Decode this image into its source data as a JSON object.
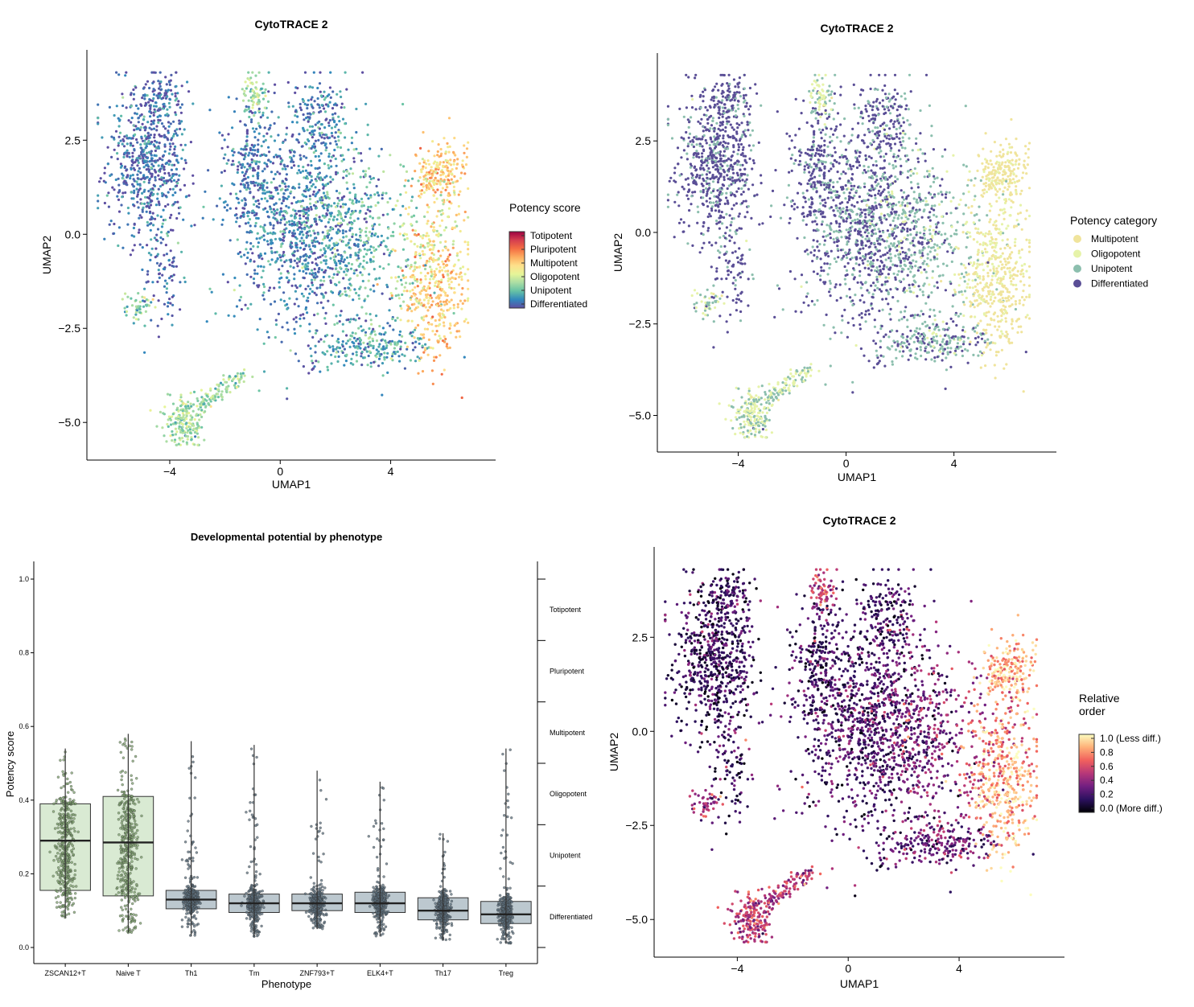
{
  "chart_data": [
    {
      "type": "scatter",
      "id": "umap_score",
      "title": "CytoTRACE 2",
      "xlabel": "UMAP1",
      "ylabel": "UMAP2",
      "xlim": [
        -7,
        7.8
      ],
      "ylim": [
        -6,
        4.9
      ],
      "xticks": [
        -4,
        0,
        4
      ],
      "xtick_labels": [
        "−4",
        "0",
        "4"
      ],
      "yticks": [
        -5.0,
        -2.5,
        0.0,
        2.5
      ],
      "ytick_labels": [
        "−5.0",
        "−2.5",
        "0.0",
        "2.5"
      ],
      "color_by": "potency_score",
      "legend": {
        "title": "Potency score",
        "kind": "colorbar",
        "labels": [
          "Totipotent",
          "Pluripotent",
          "Multipotent",
          "Oligopotent",
          "Unipotent",
          "Differentiated"
        ],
        "colors": [
          "#9e0142",
          "#d53e4f",
          "#f46d43",
          "#fdae61",
          "#fee08b",
          "#e6f598",
          "#abdda4",
          "#66c2a5",
          "#3288bd",
          "#5e4fa2"
        ],
        "placement": "right"
      }
    },
    {
      "type": "scatter",
      "id": "umap_category",
      "title": "CytoTRACE 2",
      "xlabel": "UMAP1",
      "ylabel": "UMAP2",
      "xlim": [
        -7,
        7.8
      ],
      "ylim": [
        -6,
        4.9
      ],
      "xticks": [
        -4,
        0,
        4
      ],
      "xtick_labels": [
        "−4",
        "0",
        "4"
      ],
      "yticks": [
        -5.0,
        -2.5,
        0.0,
        2.5
      ],
      "ytick_labels": [
        "−5.0",
        "−2.5",
        "0.0",
        "2.5"
      ],
      "color_by": "potency_category",
      "legend": {
        "title": "Potency category",
        "kind": "discrete",
        "labels": [
          "Multipotent",
          "Oligopotent",
          "Unipotent",
          "Differentiated"
        ],
        "colors": [
          "#f0e49c",
          "#e6f3a9",
          "#8cbfae",
          "#5a4e96"
        ],
        "placement": "right"
      }
    },
    {
      "type": "box",
      "id": "phenotype_box",
      "title": "Developmental potential by phenotype",
      "xlabel": "Phenotype",
      "ylabel": "Potency score",
      "ylim": [
        0,
        1.0
      ],
      "yticks": [
        0.0,
        0.2,
        0.4,
        0.6,
        0.8,
        1.0
      ],
      "ytick_labels": [
        "0.0",
        "0.2",
        "0.4",
        "0.6",
        "0.8",
        "1.0"
      ],
      "categories": [
        "ZSCAN12+T",
        "Naive T",
        "Th1",
        "Tm",
        "ZNF793+T",
        "ELK4+T",
        "Th17",
        "Treg"
      ],
      "q1": [
        0.155,
        0.14,
        0.105,
        0.095,
        0.1,
        0.095,
        0.075,
        0.065
      ],
      "median": [
        0.29,
        0.285,
        0.13,
        0.12,
        0.12,
        0.12,
        0.1,
        0.09
      ],
      "q3": [
        0.39,
        0.41,
        0.155,
        0.145,
        0.145,
        0.15,
        0.135,
        0.125
      ],
      "whisker_low": [
        0.08,
        0.04,
        0.03,
        0.03,
        0.05,
        0.03,
        0.02,
        0.01
      ],
      "whisker_high": [
        0.54,
        0.58,
        0.56,
        0.55,
        0.48,
        0.45,
        0.31,
        0.54
      ],
      "box_colors": [
        "#d9ead3",
        "#d9ead3",
        "#bcc8cf",
        "#bcc8cf",
        "#bcc8cf",
        "#bcc8cf",
        "#bcc8cf",
        "#bcc8cf"
      ],
      "right_axis_labels": [
        "Totipotent",
        "Pluripotent",
        "Multipotent",
        "Oligopotent",
        "Unipotent",
        "Differentiated"
      ]
    },
    {
      "type": "scatter",
      "id": "umap_relative",
      "title": "CytoTRACE 2",
      "xlabel": "UMAP1",
      "ylabel": "UMAP2",
      "xlim": [
        -7,
        7.8
      ],
      "ylim": [
        -6,
        4.9
      ],
      "xticks": [
        -4,
        0,
        4
      ],
      "xtick_labels": [
        "−4",
        "0",
        "4"
      ],
      "yticks": [
        -5.0,
        -2.5,
        0.0,
        2.5
      ],
      "ytick_labels": [
        "−5.0",
        "−2.5",
        "0.0",
        "2.5"
      ],
      "color_by": "relative_order",
      "legend": {
        "title_lines": [
          "Relative",
          "order"
        ],
        "kind": "colorbar",
        "labels": [
          "1.0 (Less diff.)",
          "0.8",
          "0.6",
          "0.4",
          "0.2",
          "0.0 (More diff.)"
        ],
        "colors": [
          "#fcfdbf",
          "#feb078",
          "#f1605d",
          "#b73779",
          "#721f81",
          "#2c115f",
          "#000004"
        ],
        "placement": "right"
      }
    }
  ]
}
